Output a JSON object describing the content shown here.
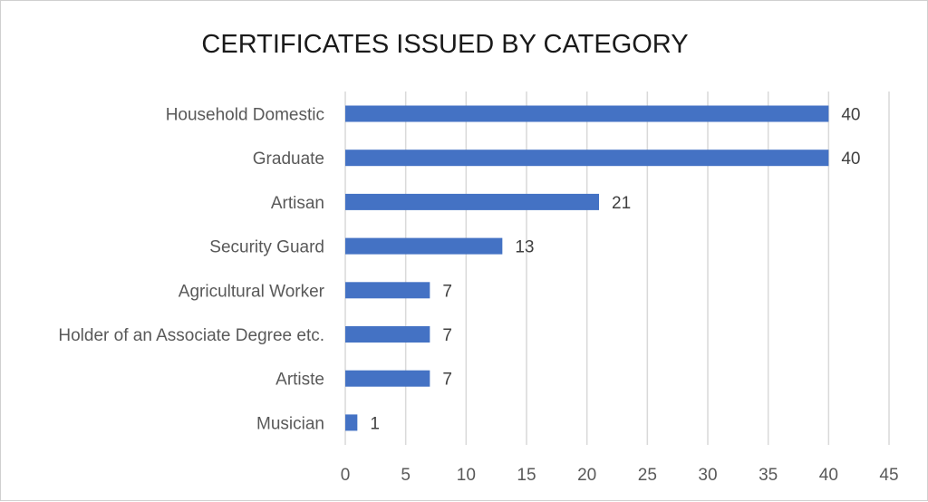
{
  "chart_data": {
    "type": "bar",
    "orientation": "horizontal",
    "title": "CERTIFICATES ISSUED BY CATEGORY",
    "categories": [
      "Household Domestic",
      "Graduate",
      "Artisan",
      "Security Guard",
      "Agricultural Worker",
      "Holder of an Associate Degree etc.",
      "Artiste",
      "Musician"
    ],
    "values": [
      40,
      40,
      21,
      13,
      7,
      7,
      7,
      1
    ],
    "xlim": [
      0,
      45
    ],
    "xticks": [
      0,
      5,
      10,
      15,
      20,
      25,
      30,
      35,
      40,
      45
    ],
    "grid": "vertical",
    "legend": "none",
    "data_labels": true,
    "bar_color": "#4472c4"
  }
}
